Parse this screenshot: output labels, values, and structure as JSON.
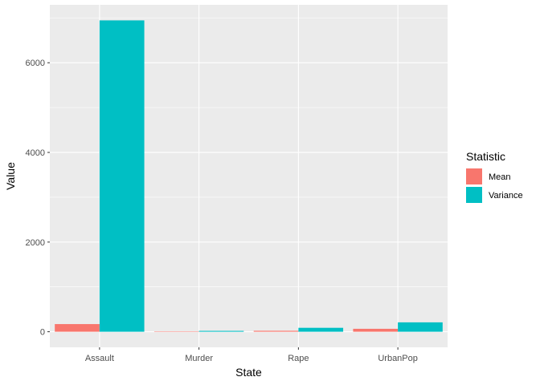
{
  "chart_data": {
    "type": "bar",
    "xlabel": "State",
    "ylabel": "Value",
    "categories": [
      "Assault",
      "Murder",
      "Rape",
      "UrbanPop"
    ],
    "series": [
      {
        "name": "Mean",
        "color": "#F8766D",
        "values": [
          170.76,
          7.79,
          21.23,
          65.54
        ]
      },
      {
        "name": "Variance",
        "color": "#00BFC4",
        "values": [
          6945.17,
          18.97,
          87.73,
          209.52
        ]
      }
    ],
    "y_ticks": [
      0,
      2000,
      4000,
      6000
    ],
    "y_tick_labels": [
      "0",
      "2000",
      "4000",
      "6000"
    ],
    "ylim": [
      -347.26,
      7292.43
    ],
    "grid": true,
    "legend": {
      "title": "Statistic",
      "position": "right"
    },
    "panel_background": "#EBEBEB",
    "gridline_color": "#FFFFFF"
  }
}
